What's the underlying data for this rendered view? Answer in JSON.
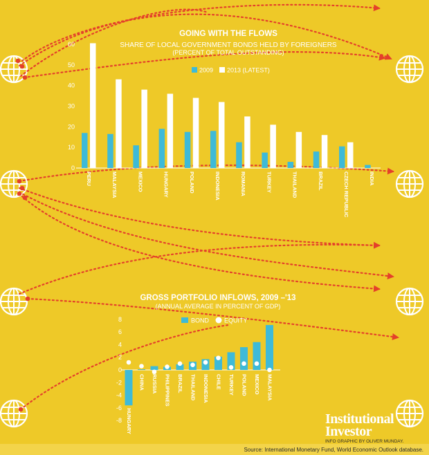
{
  "colors": {
    "background": "#eec928",
    "series_2009": "#3ebad8",
    "series_2013": "#ffffff",
    "bond": "#3ebad8",
    "equity": "#ffffff",
    "arrow": "#e4402a",
    "globe": "#ffffff",
    "text": "#ffffff",
    "footer_text": "#2a2a2a"
  },
  "icons": [
    "globe-icon",
    "dotted-arrow"
  ],
  "chart_data": [
    {
      "type": "bar",
      "title": "GOING WITH THE FLOWS",
      "subtitle": "SHARE OF LOCAL GOVERNMENT BONDS HELD BY FOREIGNERS",
      "subtitle2": "(PERCENT OF TOTAL OUTSTANDING)",
      "categories": [
        "PERU",
        "MALAYSIA",
        "MEXICO",
        "HUNGARY",
        "POLAND",
        "INDONESIA",
        "ROMANIA",
        "TURKEY",
        "THAILAND",
        "BRAZIL",
        "CZECH REPUBLIC",
        "INDIA"
      ],
      "series": [
        {
          "name": "2009",
          "values": [
            17,
            16.5,
            11,
            19,
            17.5,
            18,
            12.5,
            7.5,
            3,
            8,
            10.5,
            1.5
          ]
        },
        {
          "name": "2013 (LATEST)",
          "values": [
            60.5,
            43,
            38,
            36,
            34,
            32,
            25,
            21,
            17.5,
            16,
            12.5,
            0
          ]
        }
      ],
      "yticks": [
        0,
        10,
        20,
        30,
        40,
        50,
        60
      ],
      "ylim": [
        0,
        62
      ],
      "grid": false,
      "legend": "top"
    },
    {
      "type": "bar",
      "title": "GROSS PORTFOLIO INFLOWS, 2009 –'13",
      "subtitle": "(ANNUAL AVERAGE IN PERCENT OF GDP)",
      "categories": [
        "HUNGARY",
        "CHINA",
        "RUSSIA",
        "PHILIPPINES",
        "BRAZIL",
        "THAILAND",
        "INDONESIA",
        "CHILE",
        "TURKEY",
        "POLAND",
        "MEXICO",
        "MALAYSIA"
      ],
      "series": [
        {
          "name": "BOND",
          "values": [
            -5.6,
            0.1,
            0.6,
            0.5,
            0.9,
            1.3,
            1.7,
            2.1,
            2.8,
            3.6,
            4.4,
            7.1
          ]
        },
        {
          "name": "EQUITY",
          "values": [
            1.2,
            0.6,
            -0.3,
            0.5,
            1.0,
            0.8,
            1.2,
            1.9,
            0.4,
            1.0,
            1.0,
            0.0
          ]
        }
      ],
      "yticks": [
        -8,
        -6,
        -4,
        -2,
        0,
        2,
        4,
        6,
        8
      ],
      "ylim": [
        -8.8,
        8.8
      ],
      "grid": false,
      "legend": "top"
    }
  ],
  "credits": {
    "logo_line1": "Institutional",
    "logo_line2": "Investor",
    "infographic": "INFO GRAPHIC BY OLIVER MUNDAY.",
    "source": "Source: International Monetary Fund, World Economic Outlook database."
  }
}
